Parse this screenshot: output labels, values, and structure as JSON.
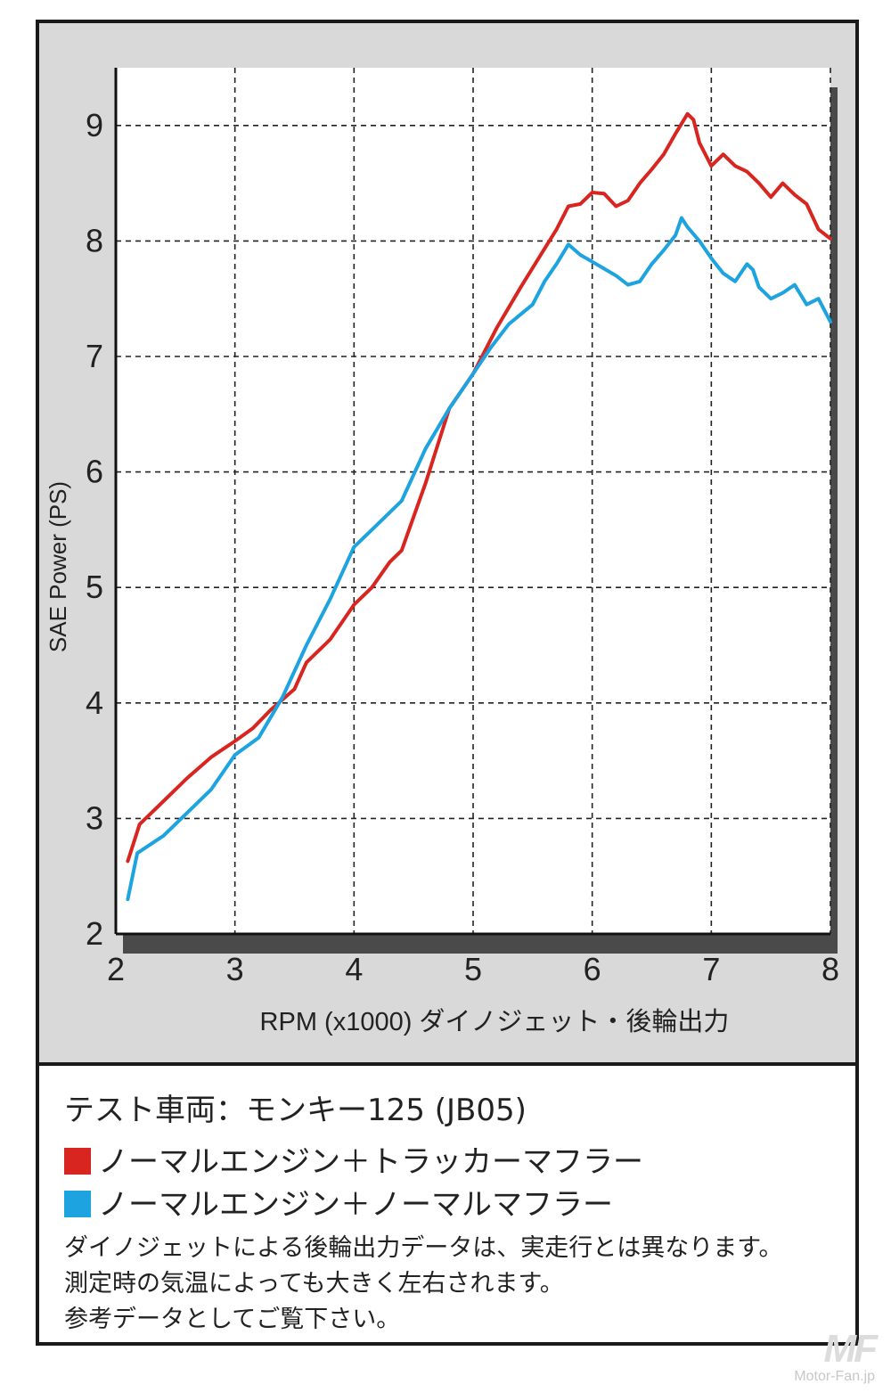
{
  "chart_data": {
    "type": "line",
    "xlabel": "RPM (x1000) ダイノジェット・後輪出力",
    "ylabel": "SAE Power (PS)",
    "xlim": [
      2,
      8
    ],
    "ylim": [
      2,
      9.5
    ],
    "xticks": [
      2,
      3,
      4,
      5,
      6,
      7,
      8
    ],
    "yticks": [
      2,
      3,
      4,
      5,
      6,
      7,
      8,
      9
    ],
    "grid": true,
    "grid_style": "dashed",
    "series": [
      {
        "name": "ノーマルエンジン＋トラッカーマフラー",
        "color": "#d9251f",
        "points": [
          [
            2.1,
            2.63
          ],
          [
            2.2,
            2.95
          ],
          [
            2.4,
            3.15
          ],
          [
            2.6,
            3.35
          ],
          [
            2.8,
            3.53
          ],
          [
            3.0,
            3.67
          ],
          [
            3.15,
            3.78
          ],
          [
            3.3,
            3.94
          ],
          [
            3.5,
            4.12
          ],
          [
            3.6,
            4.35
          ],
          [
            3.8,
            4.55
          ],
          [
            4.0,
            4.85
          ],
          [
            4.15,
            5.0
          ],
          [
            4.3,
            5.22
          ],
          [
            4.4,
            5.32
          ],
          [
            4.6,
            5.9
          ],
          [
            4.8,
            6.55
          ],
          [
            5.0,
            6.85
          ],
          [
            5.2,
            7.25
          ],
          [
            5.4,
            7.6
          ],
          [
            5.55,
            7.85
          ],
          [
            5.7,
            8.1
          ],
          [
            5.8,
            8.3
          ],
          [
            5.9,
            8.32
          ],
          [
            6.0,
            8.42
          ],
          [
            6.1,
            8.41
          ],
          [
            6.2,
            8.3
          ],
          [
            6.3,
            8.35
          ],
          [
            6.4,
            8.5
          ],
          [
            6.5,
            8.62
          ],
          [
            6.6,
            8.75
          ],
          [
            6.7,
            8.93
          ],
          [
            6.8,
            9.1
          ],
          [
            6.85,
            9.05
          ],
          [
            6.9,
            8.85
          ],
          [
            7.0,
            8.65
          ],
          [
            7.1,
            8.75
          ],
          [
            7.2,
            8.65
          ],
          [
            7.3,
            8.6
          ],
          [
            7.4,
            8.5
          ],
          [
            7.5,
            8.38
          ],
          [
            7.6,
            8.5
          ],
          [
            7.7,
            8.4
          ],
          [
            7.8,
            8.32
          ],
          [
            7.9,
            8.1
          ],
          [
            8.0,
            8.02
          ]
        ]
      },
      {
        "name": "ノーマルエンジン＋ノーマルマフラー",
        "color": "#1ca3e0",
        "points": [
          [
            2.1,
            2.3
          ],
          [
            2.18,
            2.7
          ],
          [
            2.4,
            2.85
          ],
          [
            2.6,
            3.05
          ],
          [
            2.8,
            3.25
          ],
          [
            3.0,
            3.55
          ],
          [
            3.2,
            3.7
          ],
          [
            3.4,
            4.05
          ],
          [
            3.6,
            4.5
          ],
          [
            3.8,
            4.9
          ],
          [
            4.0,
            5.35
          ],
          [
            4.1,
            5.45
          ],
          [
            4.2,
            5.55
          ],
          [
            4.4,
            5.75
          ],
          [
            4.6,
            6.2
          ],
          [
            4.8,
            6.55
          ],
          [
            5.0,
            6.85
          ],
          [
            5.15,
            7.08
          ],
          [
            5.3,
            7.28
          ],
          [
            5.5,
            7.45
          ],
          [
            5.6,
            7.65
          ],
          [
            5.7,
            7.8
          ],
          [
            5.8,
            7.97
          ],
          [
            5.9,
            7.88
          ],
          [
            6.0,
            7.82
          ],
          [
            6.1,
            7.76
          ],
          [
            6.2,
            7.7
          ],
          [
            6.3,
            7.62
          ],
          [
            6.4,
            7.65
          ],
          [
            6.5,
            7.8
          ],
          [
            6.6,
            7.92
          ],
          [
            6.7,
            8.05
          ],
          [
            6.75,
            8.2
          ],
          [
            6.8,
            8.12
          ],
          [
            6.9,
            8.0
          ],
          [
            7.0,
            7.85
          ],
          [
            7.1,
            7.72
          ],
          [
            7.2,
            7.65
          ],
          [
            7.3,
            7.8
          ],
          [
            7.35,
            7.75
          ],
          [
            7.4,
            7.6
          ],
          [
            7.5,
            7.5
          ],
          [
            7.6,
            7.55
          ],
          [
            7.7,
            7.62
          ],
          [
            7.8,
            7.45
          ],
          [
            7.9,
            7.5
          ],
          [
            8.0,
            7.3
          ]
        ]
      }
    ]
  },
  "legend": {
    "test_vehicle": "テスト車両：モンキー125 (JB05)",
    "items": [
      {
        "label": "ノーマルエンジン＋トラッカーマフラー",
        "color": "#d9251f"
      },
      {
        "label": "ノーマルエンジン＋ノーマルマフラー",
        "color": "#1ca3e0"
      }
    ],
    "notes": [
      "ダイノジェットによる後輪出力データは、実走行とは異なります。",
      "測定時の気温によっても大きく左右されます。",
      "参考データとしてご覧下さい。"
    ]
  },
  "watermark": {
    "logo": "MF",
    "site": "Motor-Fan.jp"
  }
}
